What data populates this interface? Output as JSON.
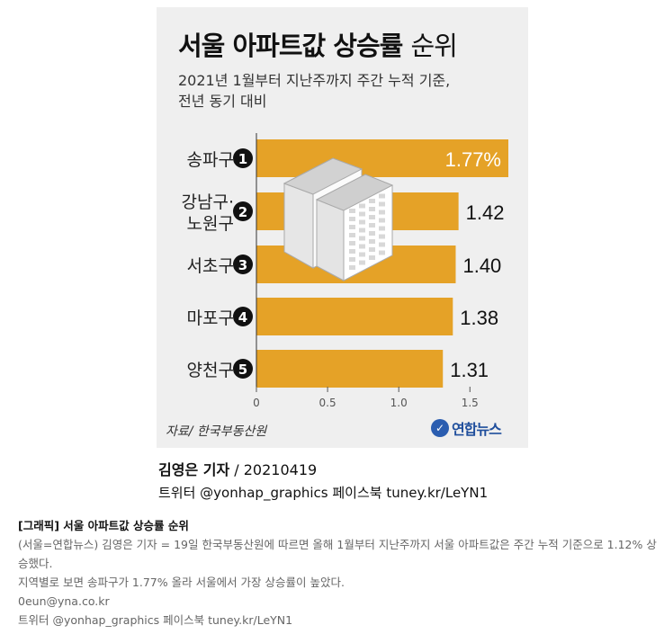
{
  "graphic": {
    "title_bold": "서울 아파트값 상승률",
    "title_light": "순위",
    "subtitle_line1": "2021년 1월부터 지난주까지 주간 누적 기준,",
    "subtitle_line2": "전년 동기 대비",
    "source": "자료/ 한국부동산원",
    "logo": "연합뉴스"
  },
  "chart_data": {
    "type": "bar",
    "orientation": "horizontal",
    "categories": [
      {
        "rank": "1",
        "name": [
          "송파구"
        ]
      },
      {
        "rank": "2",
        "name": [
          "강남구·",
          "노원구"
        ]
      },
      {
        "rank": "3",
        "name": [
          "서초구"
        ]
      },
      {
        "rank": "4",
        "name": [
          "마포구"
        ]
      },
      {
        "rank": "5",
        "name": [
          "양천구"
        ]
      }
    ],
    "values": [
      1.77,
      1.42,
      1.4,
      1.38,
      1.31
    ],
    "value_labels": [
      "1.77%",
      "1.42",
      "1.40",
      "1.38",
      "1.31"
    ],
    "x_ticks": [
      "0",
      "0.5",
      "1.0",
      "1.5"
    ],
    "xlim": [
      0,
      1.77
    ],
    "bar_color": "#e5a227",
    "grid": false
  },
  "credit": {
    "author": "김영은 기자",
    "date": " / 20210419",
    "social": "트위터 @yonhap_graphics  페이스북 tuney.kr/LeYN1"
  },
  "caption": {
    "title": "[그래픽] 서울 아파트값 상승률 순위",
    "body": "(서울=연합뉴스) 김영은 기자 = 19일 한국부동산원에 따르면 올해 1월부터 지난주까지 서울 아파트값은 주간 누적 기준으로 1.12% 상승했다.",
    "detail": "지역별로 보면 송파구가 1.77% 올라 서울에서 가장 상승률이 높았다.",
    "email": "0eun@yna.co.kr",
    "social": "트위터 @yonhap_graphics 페이스북 tuney.kr/LeYN1"
  }
}
